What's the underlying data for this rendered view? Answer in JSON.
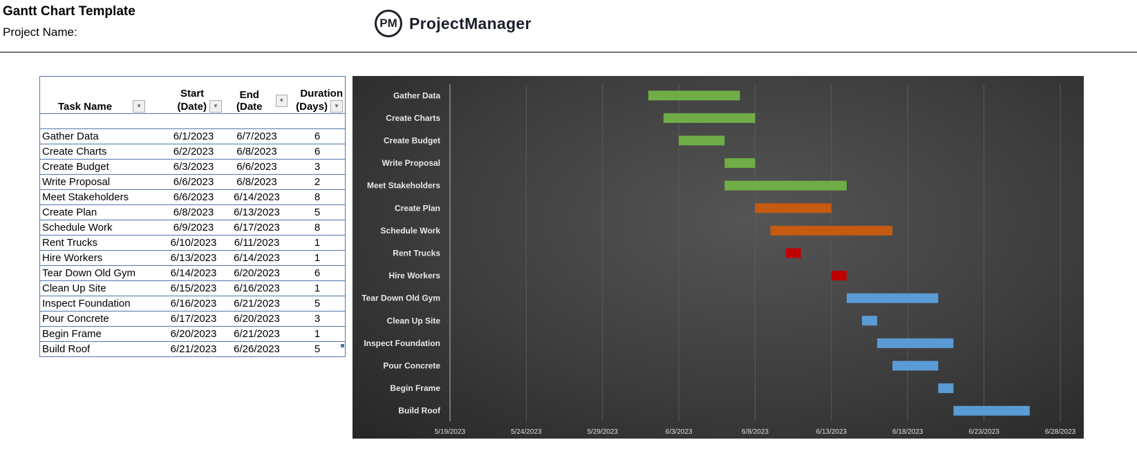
{
  "header": {
    "title": "Gantt Chart Template",
    "project_name_label": "Project Name:",
    "logo_text": "ProjectManager",
    "logo_mark": "PM"
  },
  "table": {
    "columns": [
      {
        "line1": "",
        "line2": "Task Name"
      },
      {
        "line1": "Start",
        "line2": "(Date)"
      },
      {
        "line1": "",
        "line2": "End  (Date"
      },
      {
        "line1": "Duration",
        "line2": "(Days)"
      }
    ],
    "rows": [
      [
        "Gather Data",
        "6/1/2023",
        "6/7/2023",
        "6"
      ],
      [
        "Create Charts",
        "6/2/2023",
        "6/8/2023",
        "6"
      ],
      [
        "Create Budget",
        "6/3/2023",
        "6/6/2023",
        "3"
      ],
      [
        "Write Proposal",
        "6/6/2023",
        "6/8/2023",
        "2"
      ],
      [
        "Meet Stakeholders",
        "6/6/2023",
        "6/14/2023",
        "8"
      ],
      [
        "Create Plan",
        "6/8/2023",
        "6/13/2023",
        "5"
      ],
      [
        "Schedule Work",
        "6/9/2023",
        "6/17/2023",
        "8"
      ],
      [
        "Rent Trucks",
        "6/10/2023",
        "6/11/2023",
        "1"
      ],
      [
        "Hire Workers",
        "6/13/2023",
        "6/14/2023",
        "1"
      ],
      [
        "Tear Down Old Gym",
        "6/14/2023",
        "6/20/2023",
        "6"
      ],
      [
        "Clean Up Site",
        "6/15/2023",
        "6/16/2023",
        "1"
      ],
      [
        "Inspect Foundation",
        "6/16/2023",
        "6/21/2023",
        "5"
      ],
      [
        "Pour Concrete",
        "6/17/2023",
        "6/20/2023",
        "3"
      ],
      [
        "Begin Frame",
        "6/20/2023",
        "6/21/2023",
        "1"
      ],
      [
        "Build Roof",
        "6/21/2023",
        "6/26/2023",
        "5"
      ]
    ]
  },
  "chart_data": {
    "type": "bar",
    "orientation": "horizontal-gantt",
    "categories": [
      "Gather Data",
      "Create Charts",
      "Create Budget",
      "Write Proposal",
      "Meet Stakeholders",
      "Create Plan",
      "Schedule Work",
      "Rent Trucks",
      "Hire Workers",
      "Tear Down Old Gym",
      "Clean Up Site",
      "Inspect Foundation",
      "Pour Concrete",
      "Begin Frame",
      "Build Roof"
    ],
    "start": [
      "2023-06-01",
      "2023-06-02",
      "2023-06-03",
      "2023-06-06",
      "2023-06-06",
      "2023-06-08",
      "2023-06-09",
      "2023-06-10",
      "2023-06-13",
      "2023-06-14",
      "2023-06-15",
      "2023-06-16",
      "2023-06-17",
      "2023-06-20",
      "2023-06-21"
    ],
    "duration_days": [
      6,
      6,
      3,
      2,
      8,
      5,
      8,
      1,
      1,
      6,
      1,
      5,
      3,
      1,
      5
    ],
    "bar_colors": [
      "#70AD47",
      "#70AD47",
      "#70AD47",
      "#70AD47",
      "#70AD47",
      "#C55A11",
      "#C55A11",
      "#C00000",
      "#C00000",
      "#5B9BD5",
      "#5B9BD5",
      "#5B9BD5",
      "#5B9BD5",
      "#5B9BD5",
      "#5B9BD5"
    ],
    "xlim": [
      "2023-05-19",
      "2023-06-28"
    ],
    "x_ticks": [
      "5/19/2023",
      "5/24/2023",
      "5/29/2023",
      "6/3/2023",
      "6/8/2023",
      "6/13/2023",
      "6/18/2023",
      "6/23/2023",
      "6/28/2023"
    ],
    "grid": "vertical",
    "background": "#3d3d3d"
  }
}
